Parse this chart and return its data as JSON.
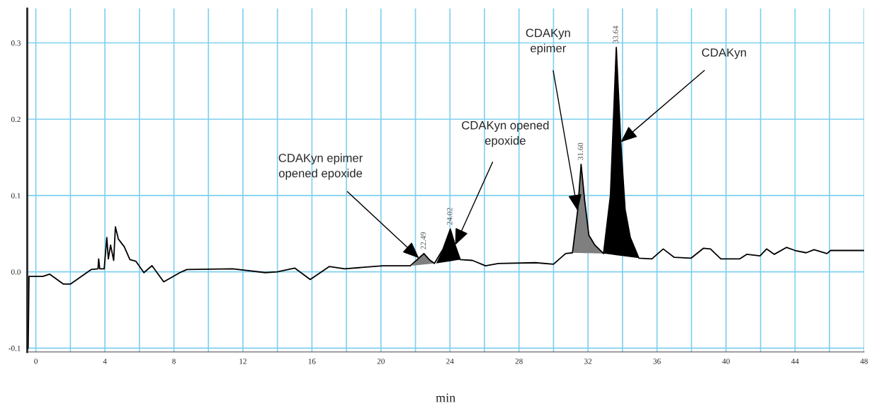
{
  "chart_data": {
    "type": "line",
    "xlabel": "min",
    "xlim": [
      -0.5,
      48
    ],
    "ylim": [
      -0.105,
      0.345
    ],
    "xticks": [
      0,
      {
        "value": 2,
        "label": null
      },
      4,
      {
        "value": 6,
        "label": null
      },
      8,
      {
        "value": 10,
        "label": null
      },
      12,
      {
        "value": 14,
        "label": null
      },
      16,
      {
        "value": 18,
        "label": null
      },
      20,
      {
        "value": 22,
        "label": null
      },
      24,
      {
        "value": 26,
        "label": null
      },
      28,
      {
        "value": 30,
        "label": null
      },
      32,
      {
        "value": 34,
        "label": null
      },
      36,
      {
        "value": 38,
        "label": null
      },
      40,
      {
        "value": 42,
        "label": null
      },
      44,
      {
        "value": 46,
        "label": null
      },
      48
    ],
    "yticks": [
      {
        "value": -0.1,
        "label": "-0.1"
      },
      {
        "value": 0,
        "label": "0.0"
      },
      0.1,
      0.2,
      0.3
    ],
    "grid": true,
    "series": [
      {
        "color": "#000000",
        "x": [
          -0.45,
          -0.42,
          -0.4,
          0.4,
          0.8,
          1.6,
          2.0,
          3.2,
          3.6,
          3.64,
          3.7,
          3.96,
          4.11,
          4.2,
          4.33,
          4.51,
          4.61,
          4.78,
          5.12,
          5.45,
          5.79,
          6.26,
          6.73,
          7.41,
          8.35,
          8.75,
          11.4,
          13.3,
          14.0,
          15.0,
          15.9,
          17.0,
          17.9,
          20.1,
          21.7,
          22.2,
          22.49,
          22.8,
          23.1,
          23.6,
          24.02,
          24.3,
          24.6,
          25.3,
          26.06,
          26.8,
          28.96,
          30.0,
          30.7,
          31.1,
          31.4,
          31.6,
          31.8,
          32.05,
          32.4,
          32.9,
          33.3,
          33.64,
          33.9,
          34.15,
          34.45,
          34.95,
          35.7,
          36.36,
          37.0,
          37.98,
          38.7,
          39.1,
          39.7,
          40.8,
          41.2,
          41.97,
          42.35,
          42.8,
          43.5,
          44.0,
          44.65,
          45.1,
          45.85,
          46.06,
          48
        ],
        "values": [
          -0.1,
          -0.05,
          -0.006,
          -0.006,
          -0.003,
          -0.016,
          -0.016,
          0.003,
          0.004,
          0.017,
          0.004,
          0.004,
          0.045,
          0.017,
          0.035,
          0.015,
          0.059,
          0.043,
          0.033,
          0.016,
          0.014,
          -0.001,
          0.008,
          -0.013,
          -0.001,
          0.003,
          0.004,
          -0.001,
          0.0,
          0.005,
          -0.01,
          0.007,
          0.004,
          0.008,
          0.008,
          0.018,
          0.024,
          0.016,
          0.011,
          0.03,
          0.056,
          0.035,
          0.016,
          0.015,
          0.008,
          0.011,
          0.012,
          0.01,
          0.024,
          0.025,
          0.08,
          0.141,
          0.095,
          0.048,
          0.035,
          0.024,
          0.1,
          0.294,
          0.17,
          0.082,
          0.045,
          0.018,
          0.017,
          0.03,
          0.019,
          0.018,
          0.031,
          0.03,
          0.017,
          0.017,
          0.023,
          0.021,
          0.03,
          0.023,
          0.032,
          0.028,
          0.025,
          0.029,
          0.024,
          0.028,
          0.028
        ]
      },
      {
        "type": "area",
        "color": "#7f7f7f",
        "x": [
          21.8,
          22.2,
          22.49,
          22.8,
          23.1
        ],
        "values": [
          0.008,
          0.018,
          0.024,
          0.016,
          0.011
        ]
      },
      {
        "type": "area",
        "color": "#000000",
        "x": [
          23.2,
          23.6,
          24.02,
          24.3,
          24.6
        ],
        "values": [
          0.011,
          0.03,
          0.056,
          0.035,
          0.016
        ]
      },
      {
        "type": "area",
        "color": "#7f7f7f",
        "x": [
          31.1,
          31.4,
          31.6,
          31.8,
          32.05,
          32.4,
          32.9
        ],
        "values": [
          0.025,
          0.08,
          0.141,
          0.095,
          0.048,
          0.035,
          0.024
        ]
      },
      {
        "type": "area",
        "color": "#000000",
        "x": [
          32.9,
          33.3,
          33.64,
          33.9,
          34.15,
          34.45,
          34.95
        ],
        "values": [
          0.024,
          0.1,
          0.294,
          0.17,
          0.082,
          0.045,
          0.018
        ]
      }
    ],
    "annotations": [
      {
        "text": "22.49",
        "x": 22.49,
        "y": 0.024
      },
      {
        "text": "24.02",
        "x": 24.02,
        "y": 0.056
      },
      {
        "text": "31.60",
        "x": 31.6,
        "y": 0.141
      },
      {
        "text": "33.64",
        "x": 33.64,
        "y": 0.294
      },
      {
        "text": "CDAKyn epimer\nopened epoxide",
        "x": 22.2,
        "y": 0.018
      },
      {
        "text": "CDAKyn opened\nepoxide",
        "x": 24.3,
        "y": 0.035
      },
      "CDAKyn\nepimer",
      {
        "text": "CDAKyn",
        "x": 33.9,
        "y": 0.17
      }
    ]
  }
}
